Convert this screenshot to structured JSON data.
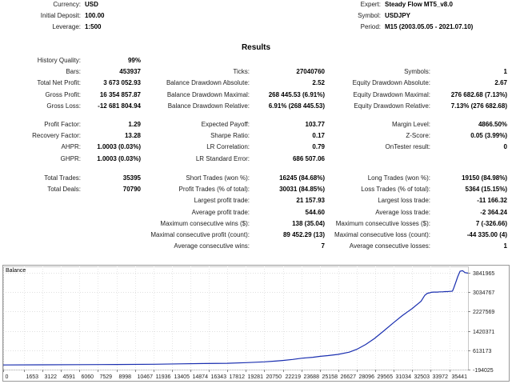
{
  "header": {
    "left": [
      {
        "label": "Currency:",
        "value": "USD"
      },
      {
        "label": "Initial Deposit:",
        "value": "100.00"
      },
      {
        "label": "Leverage:",
        "value": "1:500"
      }
    ],
    "right": [
      {
        "label": "Expert:",
        "value": "Steady Flow MT5_v8.0"
      },
      {
        "label": "Symbol:",
        "value": "USDJPY"
      },
      {
        "label": "Period:",
        "value": "M15 (2003.05.05 - 2021.07.10)"
      }
    ]
  },
  "results_title": "Results",
  "blocks": {
    "b1": {
      "col1": [
        {
          "label": "History Quality:",
          "value": "99%"
        },
        {
          "label": "Bars:",
          "value": "453937"
        },
        {
          "label": "Total Net Profit:",
          "value": "3 673 052.93"
        },
        {
          "label": "Gross Profit:",
          "value": "16 354 857.87"
        },
        {
          "label": "Gross Loss:",
          "value": "-12 681 804.94"
        }
      ],
      "col2": [
        {
          "label": "",
          "value": ""
        },
        {
          "label": "Ticks:",
          "value": "27040760"
        },
        {
          "label": "Balance Drawdown Absolute:",
          "value": "2.52"
        },
        {
          "label": "Balance Drawdown Maximal:",
          "value": "268 445.53 (6.91%)"
        },
        {
          "label": "Balance Drawdown Relative:",
          "value": "6.91% (268 445.53)"
        }
      ],
      "col3": [
        {
          "label": "",
          "value": ""
        },
        {
          "label": "Symbols:",
          "value": "1"
        },
        {
          "label": "Equity Drawdown Absolute:",
          "value": "2.67"
        },
        {
          "label": "Equity Drawdown Maximal:",
          "value": "276 682.68 (7.13%)"
        },
        {
          "label": "Equity Drawdown Relative:",
          "value": "7.13% (276 682.68)"
        }
      ]
    },
    "b2": {
      "col1": [
        {
          "label": "Profit Factor:",
          "value": "1.29"
        },
        {
          "label": "Recovery Factor:",
          "value": "13.28"
        },
        {
          "label": "AHPR:",
          "value": "1.0003 (0.03%)"
        },
        {
          "label": "GHPR:",
          "value": "1.0003 (0.03%)"
        }
      ],
      "col2": [
        {
          "label": "Expected Payoff:",
          "value": "103.77"
        },
        {
          "label": "Sharpe Ratio:",
          "value": "0.17"
        },
        {
          "label": "LR Correlation:",
          "value": "0.79"
        },
        {
          "label": "LR Standard Error:",
          "value": "686 507.06"
        }
      ],
      "col3": [
        {
          "label": "Margin Level:",
          "value": "4866.50%"
        },
        {
          "label": "Z-Score:",
          "value": "0.05 (3.99%)"
        },
        {
          "label": "OnTester result:",
          "value": "0"
        },
        {
          "label": "",
          "value": ""
        }
      ]
    },
    "b3": {
      "col1": [
        {
          "label": "Total Trades:",
          "value": "35395"
        },
        {
          "label": "Total Deals:",
          "value": "70790"
        }
      ],
      "col2": [
        {
          "label": "Short Trades (won %):",
          "value": "16245 (84.68%)"
        },
        {
          "label": "Profit Trades (% of total):",
          "value": "30031 (84.85%)"
        },
        {
          "label": "Largest profit trade:",
          "value": "21 157.93"
        },
        {
          "label": "Average profit trade:",
          "value": "544.60"
        },
        {
          "label": "Maximum consecutive wins ($):",
          "value": "138 (35.04)"
        },
        {
          "label": "Maximal consecutive profit (count):",
          "value": "89 452.29 (13)"
        },
        {
          "label": "Average consecutive wins:",
          "value": "7"
        }
      ],
      "col3": [
        {
          "label": "Long Trades (won %):",
          "value": "19150 (84.98%)"
        },
        {
          "label": "Loss Trades (% of total):",
          "value": "5364 (15.15%)"
        },
        {
          "label": "Largest loss trade:",
          "value": "-11 166.32"
        },
        {
          "label": "Average loss trade:",
          "value": "-2 364.24"
        },
        {
          "label": "Maximum consecutive losses ($):",
          "value": "7 (-326.66)"
        },
        {
          "label": "Maximal consecutive loss (count):",
          "value": "-44 335.00 (4)"
        },
        {
          "label": "Average consecutive losses:",
          "value": "1"
        }
      ]
    }
  },
  "chart_data": {
    "type": "line",
    "title": "Balance",
    "line_color": "#1a2fb0",
    "grid": true,
    "x_ticks": [
      0,
      1653,
      3122,
      4591,
      6060,
      7529,
      8998,
      10467,
      11936,
      13405,
      14874,
      16343,
      17812,
      19281,
      20750,
      22219,
      23688,
      25158,
      26627,
      28096,
      29565,
      31034,
      32503,
      33972,
      35441
    ],
    "y_ticks": [
      -194025,
      613173,
      1420371,
      2227569,
      3034767,
      3841965
    ],
    "xlim": [
      0,
      36930
    ],
    "ylim": [
      -194025,
      4100000
    ],
    "series": [
      {
        "x": [
          0,
          3000,
          6000,
          9000,
          12000,
          14000,
          16000,
          17800,
          19300,
          20750,
          21600,
          22200,
          23000,
          23700,
          24600,
          25200,
          25800,
          26600,
          27500,
          28100,
          28800,
          29500,
          30200,
          31000,
          31700,
          32500,
          33200,
          33500,
          33700,
          33900,
          34000,
          34200,
          34500,
          34700,
          34900,
          35100,
          35300,
          35500,
          35600,
          35700,
          35800,
          35900,
          36000,
          36100,
          36200,
          36300,
          36500,
          36700,
          36930
        ],
        "y": [
          100,
          5000,
          12000,
          20000,
          30000,
          45000,
          60000,
          70000,
          95000,
          130000,
          160000,
          185000,
          230000,
          280000,
          320000,
          360000,
          390000,
          440000,
          530000,
          650000,
          850000,
          1100000,
          1400000,
          1750000,
          2050000,
          2350000,
          2650000,
          2900000,
          2980000,
          3000000,
          3020000,
          3030000,
          3030000,
          3040000,
          3040000,
          3050000,
          3050000,
          3060000,
          3060000,
          3070000,
          3200000,
          3350000,
          3500000,
          3650000,
          3780000,
          3900000,
          3920000,
          3840000,
          3820000
        ]
      }
    ]
  }
}
